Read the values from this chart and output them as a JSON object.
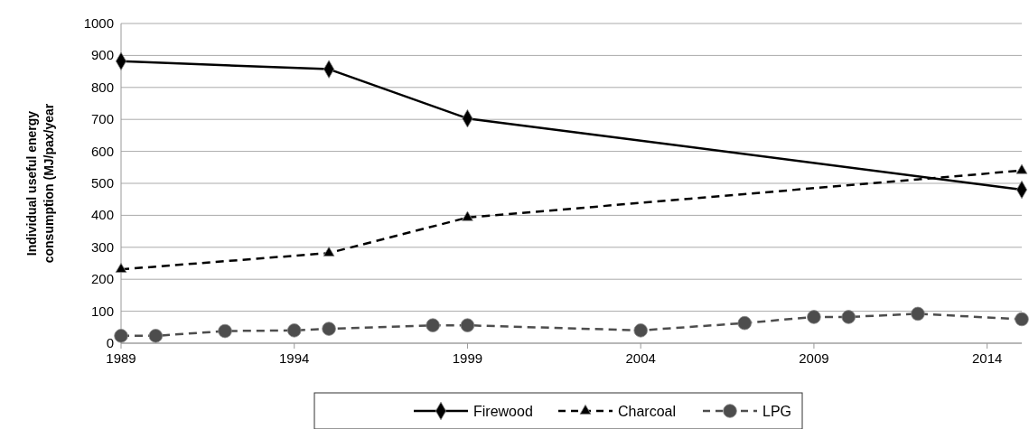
{
  "chart_data": {
    "type": "line",
    "ylabel": "Individual useful energy consumption (MJ/pax/year",
    "xlim": [
      1989,
      2015
    ],
    "xticks": [
      1989,
      1994,
      1999,
      2004,
      2009,
      2014
    ],
    "ylim": [
      0,
      1000
    ],
    "yticks": [
      0,
      100,
      200,
      300,
      400,
      500,
      600,
      700,
      800,
      900,
      1000
    ],
    "grid": "y",
    "legend": "bottom",
    "series": [
      {
        "name": "Firewood",
        "color": "#000000",
        "marker": "diamond",
        "line_style": "solid",
        "x": [
          1989,
          1995,
          1999,
          2015
        ],
        "values": [
          882,
          857,
          703,
          480
        ]
      },
      {
        "name": "Charcoal",
        "color": "#000000",
        "marker": "triangle",
        "line_style": "dashed",
        "x": [
          1989,
          1995,
          1999,
          2015
        ],
        "values": [
          231,
          282,
          393,
          540
        ]
      },
      {
        "name": "LPG",
        "color": "#4d4d4d",
        "marker": "circle",
        "line_style": "dashed",
        "x": [
          1989,
          1990,
          1992,
          1994,
          1995,
          1998,
          1999,
          2004,
          2007,
          2009,
          2010,
          2012,
          2015
        ],
        "values": [
          23,
          23,
          38,
          40,
          45,
          56,
          56,
          40,
          63,
          82,
          82,
          92,
          75
        ]
      }
    ]
  }
}
